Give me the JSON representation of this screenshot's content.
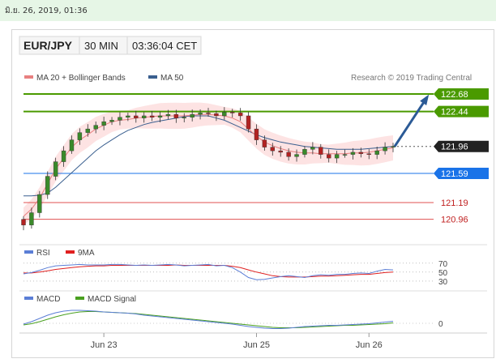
{
  "header": {
    "datetime": "มิ.ย. 26, 2019, 01:36"
  },
  "chart_header": {
    "symbol": "EUR/JPY",
    "timeframe": "30 MIN",
    "time": "03:36:04 CET"
  },
  "colors": {
    "resistance": "#4a9a00",
    "support_blue": "#1a73e8",
    "support_red": "#e05050",
    "price": "#222222",
    "ma20": "#e88080",
    "ma50": "#3a5f8f",
    "band": "#fde0e0",
    "candle_up": "#3a8a2a",
    "candle_down": "#b22222",
    "arrow": "#2b5a96",
    "rsi": "#5b7ed6",
    "rsi_ma": "#e02020",
    "macd": "#5b7ed6",
    "macd_signal": "#4aa020"
  },
  "chart_data": [
    {
      "type": "line",
      "legend": [
        {
          "label": "MA 20 + Bollinger Bands",
          "color": "#e88080"
        },
        {
          "label": "MA 50",
          "color": "#3a5f8f"
        }
      ],
      "credit": "Research © 2019 Trading Central",
      "x_ticks": [
        "Jun 23",
        "Jun 25",
        "Jun 26"
      ],
      "close": [
        120.88,
        121.05,
        121.3,
        121.55,
        121.75,
        121.9,
        122.05,
        122.15,
        122.2,
        122.25,
        122.3,
        122.32,
        122.36,
        122.38,
        122.35,
        122.38,
        122.36,
        122.38,
        122.4,
        122.35,
        122.36,
        122.4,
        122.42,
        122.41,
        122.38,
        122.43,
        122.42,
        122.38,
        122.2,
        122.05,
        121.95,
        121.9,
        121.88,
        121.82,
        121.85,
        121.92,
        121.95,
        121.85,
        121.8,
        121.85,
        121.85,
        121.88,
        121.86,
        121.85,
        121.9,
        121.95,
        121.96
      ],
      "ma20": [
        121.0,
        121.1,
        121.25,
        121.45,
        121.65,
        121.8,
        121.95,
        122.05,
        122.12,
        122.2,
        122.25,
        122.3,
        122.32,
        122.33,
        122.35,
        122.36,
        122.37,
        122.38,
        122.38,
        122.38,
        122.38,
        122.39,
        122.4,
        122.4,
        122.39,
        122.38,
        122.35,
        122.3,
        122.2,
        122.1,
        122.02,
        121.97,
        121.93,
        121.9,
        121.88,
        121.87,
        121.87,
        121.86,
        121.86,
        121.86,
        121.86,
        121.87,
        121.87,
        121.88,
        121.9,
        121.92,
        121.94
      ],
      "ma50": [
        121.28,
        121.28,
        121.29,
        121.32,
        121.4,
        121.5,
        121.6,
        121.7,
        121.8,
        121.9,
        121.98,
        122.05,
        122.12,
        122.18,
        122.22,
        122.26,
        122.29,
        122.31,
        122.33,
        122.35,
        122.37,
        122.38,
        122.38,
        122.38,
        122.35,
        122.32,
        122.27,
        122.22,
        122.17,
        122.12,
        122.08,
        122.05,
        122.02,
        122.0,
        121.98,
        121.96,
        121.95,
        121.94,
        121.93,
        121.92,
        121.92,
        121.92,
        121.92,
        121.93,
        121.94,
        121.95,
        121.96
      ],
      "levels": [
        {
          "value": 122.68,
          "label": "122.68",
          "kind": "resistance"
        },
        {
          "value": 122.44,
          "label": "122.44",
          "kind": "resistance"
        },
        {
          "value": 121.96,
          "label": "121.96",
          "kind": "price"
        },
        {
          "value": 121.59,
          "label": "121.59",
          "kind": "support_blue"
        },
        {
          "value": 121.19,
          "label": "121.19",
          "kind": "support_red"
        },
        {
          "value": 120.96,
          "label": "120.96",
          "kind": "support_red"
        }
      ],
      "forecast": {
        "from": 121.96,
        "to": 122.68
      },
      "ylim": [
        120.8,
        122.78
      ]
    },
    {
      "type": "line",
      "legend": [
        {
          "label": "RSI",
          "color": "#5b7ed6"
        },
        {
          "label": "9MA",
          "color": "#e02020"
        }
      ],
      "axis_labels": [
        "70",
        "50",
        "30"
      ],
      "rsi": [
        46,
        49,
        54,
        60,
        64,
        65,
        66,
        67,
        66,
        66,
        66,
        67,
        67,
        66,
        65,
        66,
        65,
        66,
        67,
        66,
        64,
        65,
        66,
        67,
        64,
        65,
        60,
        50,
        38,
        33,
        34,
        37,
        40,
        42,
        40,
        38,
        42,
        44,
        43,
        45,
        45,
        47,
        48,
        47,
        52,
        56,
        55
      ],
      "rsi_ma": [
        48,
        48,
        50,
        53,
        56,
        58,
        60,
        62,
        63,
        64,
        64,
        65,
        65,
        65,
        65,
        65,
        65,
        65,
        65,
        66,
        65,
        65,
        65,
        65,
        65,
        65,
        63,
        60,
        55,
        50,
        46,
        42,
        40,
        39,
        39,
        39,
        40,
        41,
        41,
        42,
        43,
        44,
        45,
        45,
        47,
        49,
        50
      ],
      "ylim": [
        28,
        75
      ]
    },
    {
      "type": "line",
      "legend": [
        {
          "label": "MACD",
          "color": "#5b7ed6"
        },
        {
          "label": "MACD Signal",
          "color": "#4aa020"
        }
      ],
      "axis_labels": [
        "0"
      ],
      "macd": [
        -0.02,
        0.04,
        0.12,
        0.2,
        0.26,
        0.3,
        0.32,
        0.32,
        0.31,
        0.3,
        0.28,
        0.27,
        0.26,
        0.25,
        0.23,
        0.2,
        0.18,
        0.16,
        0.14,
        0.12,
        0.1,
        0.08,
        0.06,
        0.04,
        0.02,
        0.0,
        -0.02,
        -0.05,
        -0.08,
        -0.1,
        -0.12,
        -0.13,
        -0.13,
        -0.12,
        -0.1,
        -0.08,
        -0.07,
        -0.06,
        -0.05,
        -0.05,
        -0.04,
        -0.03,
        -0.02,
        -0.01,
        0.01,
        0.03,
        0.05
      ],
      "signal": [
        -0.04,
        -0.01,
        0.04,
        0.1,
        0.16,
        0.21,
        0.25,
        0.28,
        0.29,
        0.29,
        0.28,
        0.27,
        0.26,
        0.25,
        0.24,
        0.22,
        0.2,
        0.18,
        0.16,
        0.14,
        0.12,
        0.1,
        0.08,
        0.06,
        0.04,
        0.02,
        0.0,
        -0.02,
        -0.04,
        -0.06,
        -0.08,
        -0.1,
        -0.11,
        -0.11,
        -0.11,
        -0.1,
        -0.09,
        -0.08,
        -0.07,
        -0.06,
        -0.05,
        -0.05,
        -0.04,
        -0.03,
        -0.02,
        -0.01,
        0.01
      ],
      "ylim": [
        -0.2,
        0.4
      ]
    }
  ]
}
